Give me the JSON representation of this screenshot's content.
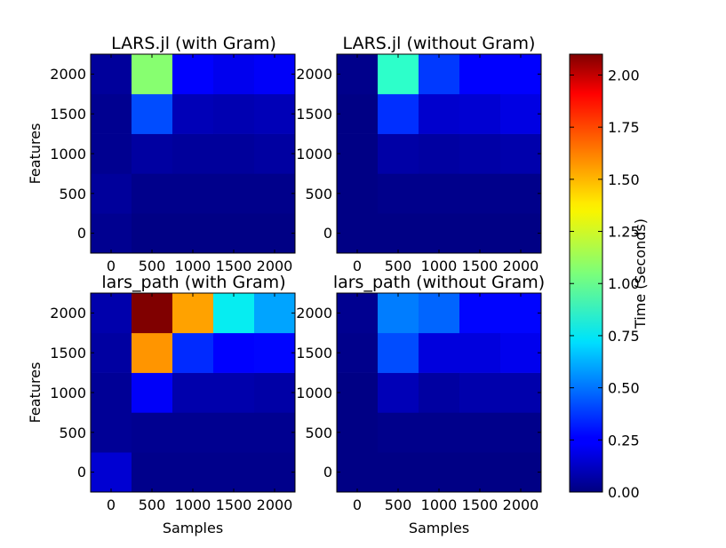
{
  "figure": {
    "ylabel": "Features",
    "xlabel": "Samples"
  },
  "colorbar": {
    "label": "Time (Seconds)",
    "vmin": 0,
    "vmax": 2.1,
    "ticks": [
      "0.00",
      "0.25",
      "0.50",
      "0.75",
      "1.00",
      "1.25",
      "1.50",
      "1.75",
      "2.00"
    ]
  },
  "chart_data": [
    {
      "type": "heatmap",
      "title": "LARS.jl (with Gram)",
      "xlabel": "",
      "ylabel": "Features",
      "x_ticks": [
        "0",
        "500",
        "1000",
        "1500",
        "2000"
      ],
      "y_ticks": [
        "0",
        "500",
        "1000",
        "1500",
        "2000"
      ],
      "values": [
        [
          0.03,
          0.01,
          0.01,
          0.01,
          0.01
        ],
        [
          0.05,
          0.02,
          0.02,
          0.02,
          0.02
        ],
        [
          0.03,
          0.06,
          0.05,
          0.05,
          0.06
        ],
        [
          0.03,
          0.42,
          0.1,
          0.09,
          0.1
        ],
        [
          0.05,
          1.08,
          0.24,
          0.2,
          0.22
        ]
      ]
    },
    {
      "type": "heatmap",
      "title": "LARS.jl (without Gram)",
      "xlabel": "",
      "ylabel": "",
      "x_ticks": [
        "0",
        "500",
        "1000",
        "1500",
        "2000"
      ],
      "y_ticks": [
        "0",
        "500",
        "1000",
        "1500",
        "2000"
      ],
      "values": [
        [
          0.01,
          0.01,
          0.01,
          0.01,
          0.01
        ],
        [
          0.01,
          0.02,
          0.02,
          0.02,
          0.02
        ],
        [
          0.01,
          0.07,
          0.06,
          0.07,
          0.08
        ],
        [
          0.01,
          0.36,
          0.14,
          0.15,
          0.18
        ],
        [
          0.02,
          0.85,
          0.38,
          0.24,
          0.24
        ]
      ]
    },
    {
      "type": "heatmap",
      "title": "lars_path (with Gram)",
      "xlabel": "Samples",
      "ylabel": "Features",
      "x_ticks": [
        "0",
        "500",
        "1000",
        "1500",
        "2000"
      ],
      "y_ticks": [
        "0",
        "500",
        "1000",
        "1500",
        "2000"
      ],
      "values": [
        [
          0.15,
          0.02,
          0.02,
          0.02,
          0.02
        ],
        [
          0.04,
          0.03,
          0.03,
          0.03,
          0.03
        ],
        [
          0.04,
          0.22,
          0.08,
          0.08,
          0.07
        ],
        [
          0.06,
          1.58,
          0.35,
          0.25,
          0.27
        ],
        [
          0.08,
          2.1,
          1.55,
          0.75,
          0.6
        ]
      ]
    },
    {
      "type": "heatmap",
      "title": "lars_path (without Gram)",
      "xlabel": "Samples",
      "ylabel": "",
      "x_ticks": [
        "0",
        "500",
        "1000",
        "1500",
        "2000"
      ],
      "y_ticks": [
        "0",
        "500",
        "1000",
        "1500",
        "2000"
      ],
      "values": [
        [
          0.01,
          0.01,
          0.01,
          0.01,
          0.01
        ],
        [
          0.01,
          0.02,
          0.02,
          0.02,
          0.02
        ],
        [
          0.01,
          0.1,
          0.06,
          0.08,
          0.08
        ],
        [
          0.02,
          0.42,
          0.17,
          0.17,
          0.2
        ],
        [
          0.03,
          0.52,
          0.47,
          0.27,
          0.27
        ]
      ]
    }
  ]
}
